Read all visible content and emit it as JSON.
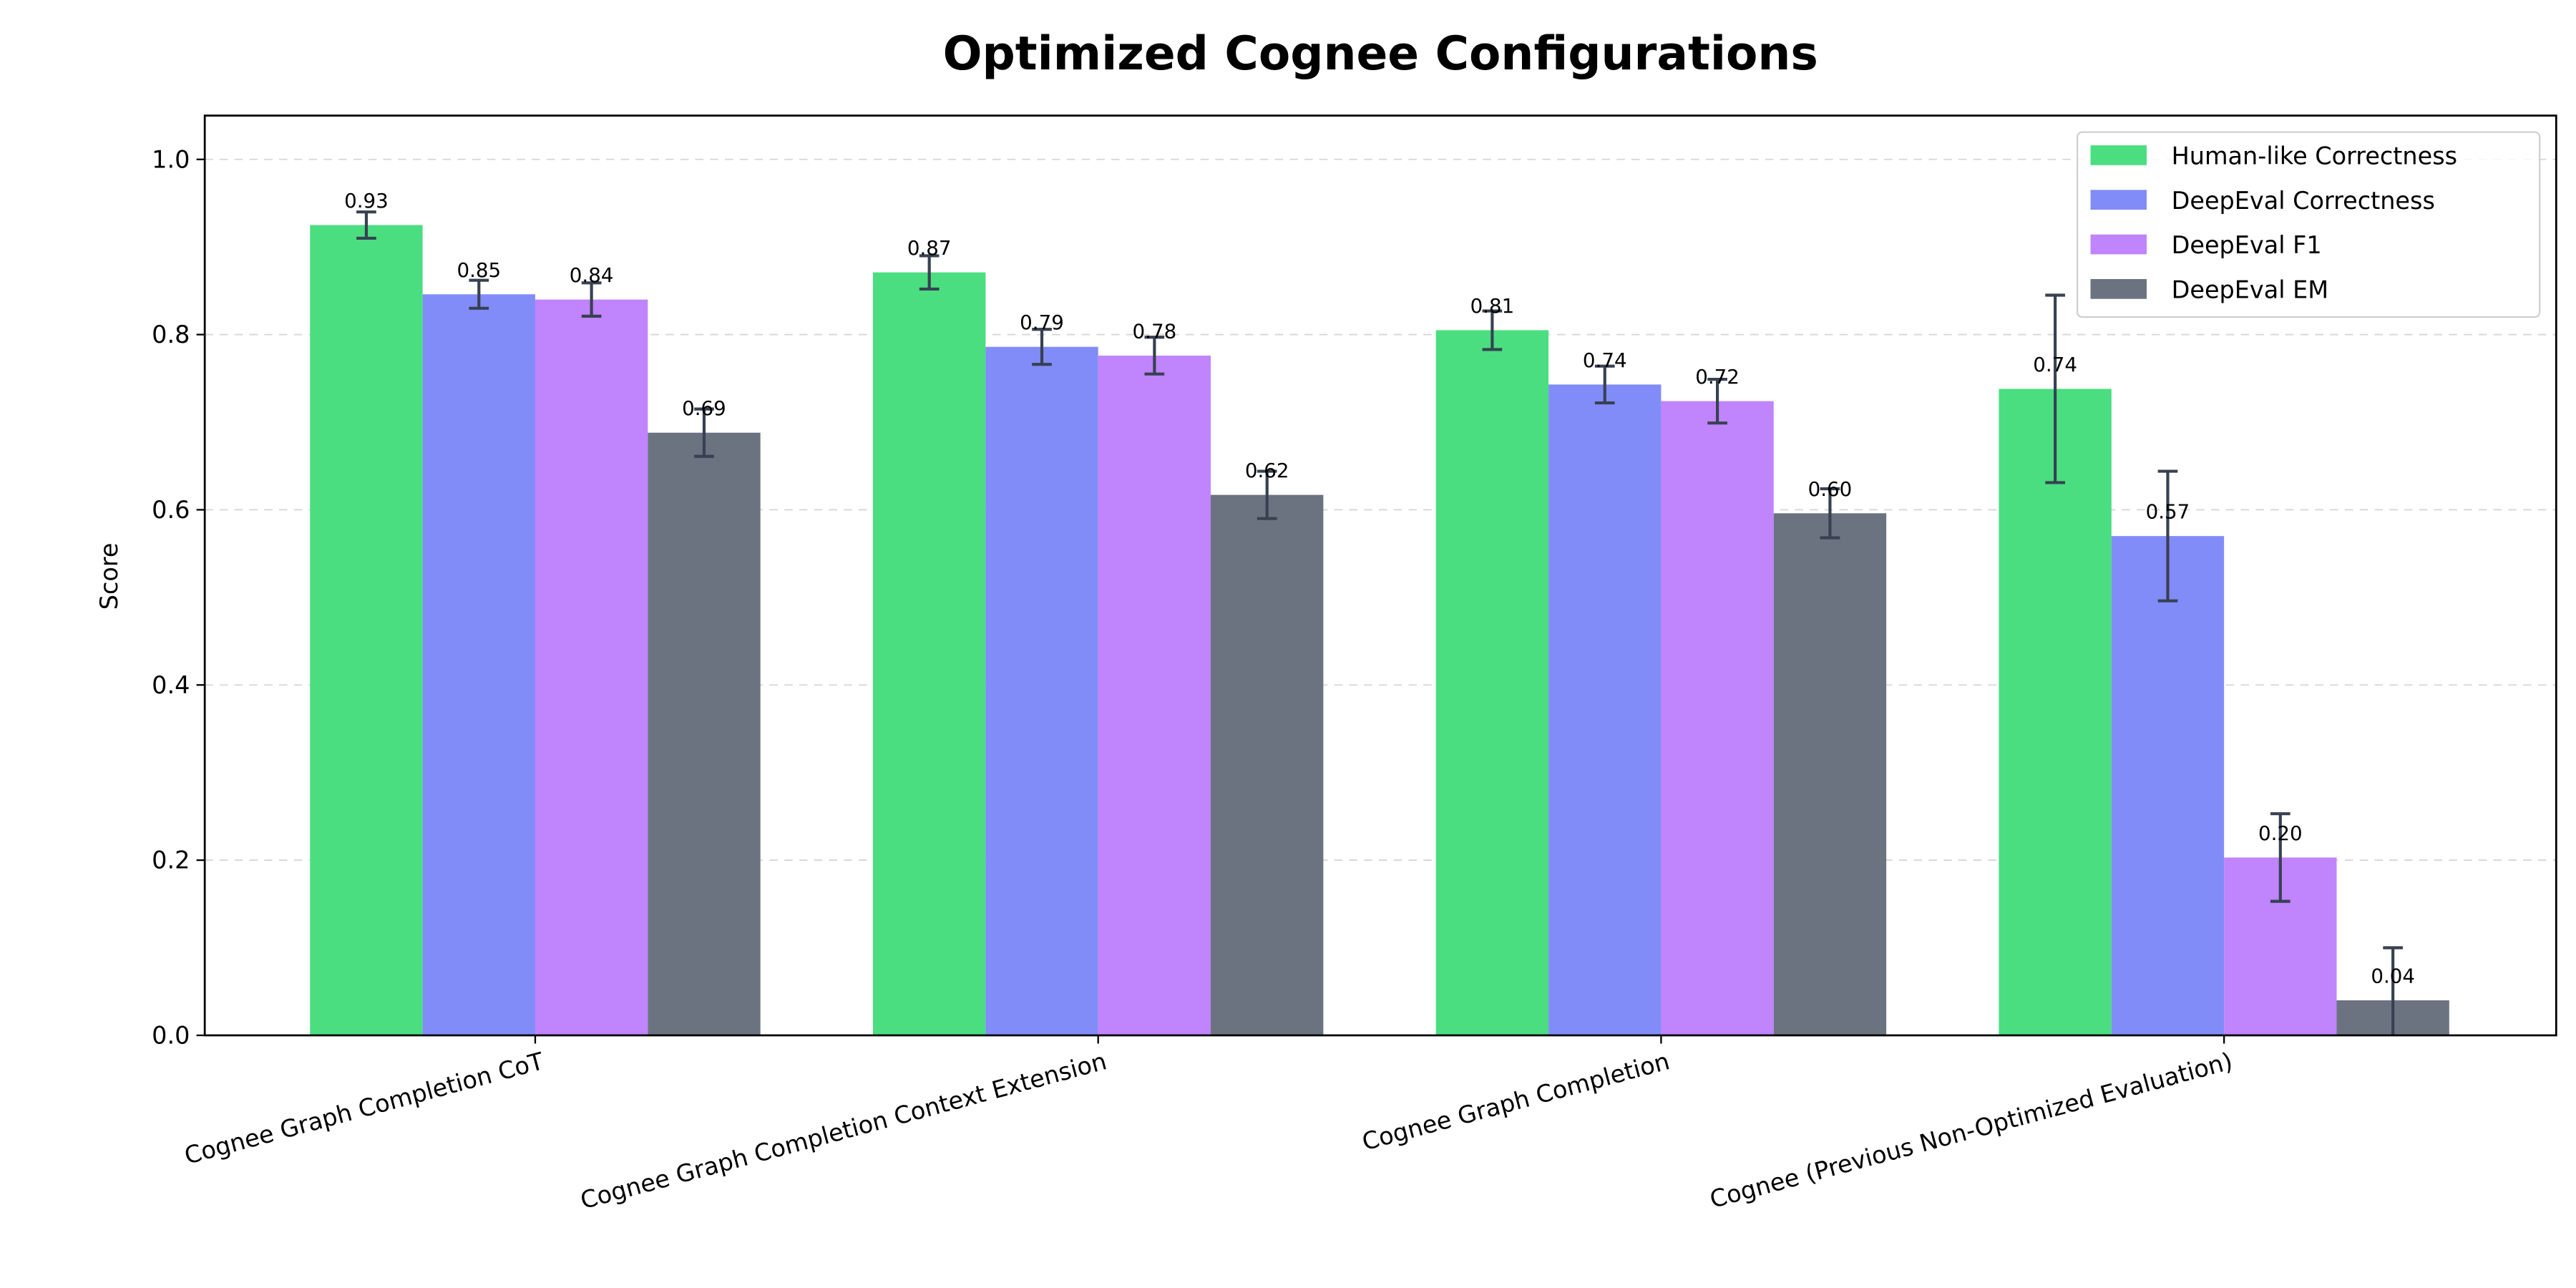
{
  "chart_data": {
    "type": "bar",
    "title": "Optimized Cognee Configurations",
    "xlabel": "",
    "ylabel": "Score",
    "ylim": [
      0,
      1.05
    ],
    "yticks": [
      "0.0",
      "0.2",
      "0.4",
      "0.6",
      "0.8",
      "1.0"
    ],
    "grid": "horizontal dashed",
    "legend_position": "top-right",
    "categories": [
      "Cognee Graph Completion CoT",
      "Cognee Graph Completion Context Extension",
      "Cognee Graph Completion",
      "Cognee (Previous Non-Optimized Evaluation)"
    ],
    "series": [
      {
        "name": "Human-like Correctness",
        "color": "#4ade80",
        "values": [
          0.925,
          0.871,
          0.805,
          0.738
        ],
        "errors": [
          0.015,
          0.019,
          0.022,
          0.107
        ],
        "labels": [
          "0.93",
          "0.87",
          "0.81",
          "0.74"
        ]
      },
      {
        "name": "DeepEval Correctness",
        "color": "#818cf8",
        "values": [
          0.846,
          0.786,
          0.743,
          0.57
        ],
        "errors": [
          0.016,
          0.02,
          0.021,
          0.074
        ],
        "labels": [
          "0.85",
          "0.79",
          "0.74",
          "0.57"
        ]
      },
      {
        "name": "DeepEval F1",
        "color": "#c084fc",
        "values": [
          0.84,
          0.776,
          0.724,
          0.203
        ],
        "errors": [
          0.019,
          0.021,
          0.025,
          0.05
        ],
        "labels": [
          "0.84",
          "0.78",
          "0.72",
          "0.20"
        ]
      },
      {
        "name": "DeepEval EM",
        "color": "#6b7280",
        "values": [
          0.688,
          0.617,
          0.596,
          0.04
        ],
        "errors": [
          0.027,
          0.027,
          0.028,
          0.06
        ],
        "labels": [
          "0.69",
          "0.62",
          "0.60",
          "0.04"
        ]
      }
    ],
    "error_bar_color": "#374151"
  }
}
